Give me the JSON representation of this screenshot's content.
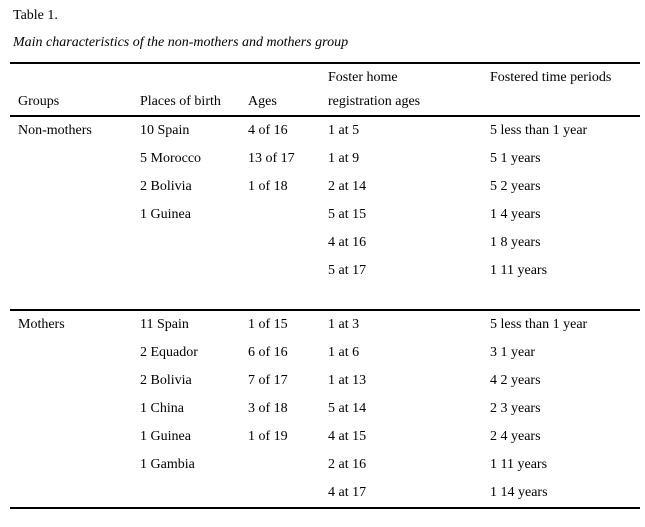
{
  "doc": {
    "table_number": "Table 1.",
    "caption": "Main characteristics of the non-mothers and mothers group"
  },
  "colors": {
    "background": "#ffffff",
    "text": "#000000",
    "rule": "#000000"
  },
  "table": {
    "header": {
      "row1": [
        "",
        "",
        "",
        "Foster home",
        "Fostered time periods"
      ],
      "row2": [
        "Groups",
        "Places of birth",
        "Ages",
        "registration ages",
        ""
      ]
    },
    "sections": [
      {
        "group": "Non-mothers",
        "rows": [
          [
            "Non-mothers",
            "10 Spain",
            "4 of 16",
            "1 at 5",
            "5 less than 1 year"
          ],
          [
            "",
            "5 Morocco",
            "13 of 17",
            "1 at 9",
            "5 1 years"
          ],
          [
            "",
            "2 Bolivia",
            "1 of 18",
            "2 at 14",
            "5 2 years"
          ],
          [
            "",
            "1 Guinea",
            "",
            "5 at 15",
            "1 4 years"
          ],
          [
            "",
            "",
            "",
            "4 at 16",
            "1 8 years"
          ],
          [
            "",
            "",
            "",
            "5 at 17",
            "1 11 years"
          ]
        ]
      },
      {
        "group": "Mothers",
        "rows": [
          [
            "Mothers",
            "11 Spain",
            "1 of 15",
            "1 at 3",
            "5 less than 1 year"
          ],
          [
            "",
            "2 Equador",
            "6 of 16",
            "1 at 6",
            "3 1 year"
          ],
          [
            "",
            "2 Bolivia",
            "7 of 17",
            "1 at 13",
            "4 2 years"
          ],
          [
            "",
            "1 China",
            "3 of 18",
            "5 at 14",
            "2 3 years"
          ],
          [
            "",
            "1 Guinea",
            "1 of 19",
            "4 at 15",
            "2 4 years"
          ],
          [
            "",
            "1 Gambia",
            "",
            "2 at 16",
            "1 11 years"
          ],
          [
            "",
            "",
            "",
            "4 at 17",
            "1 14 years"
          ]
        ]
      }
    ]
  }
}
